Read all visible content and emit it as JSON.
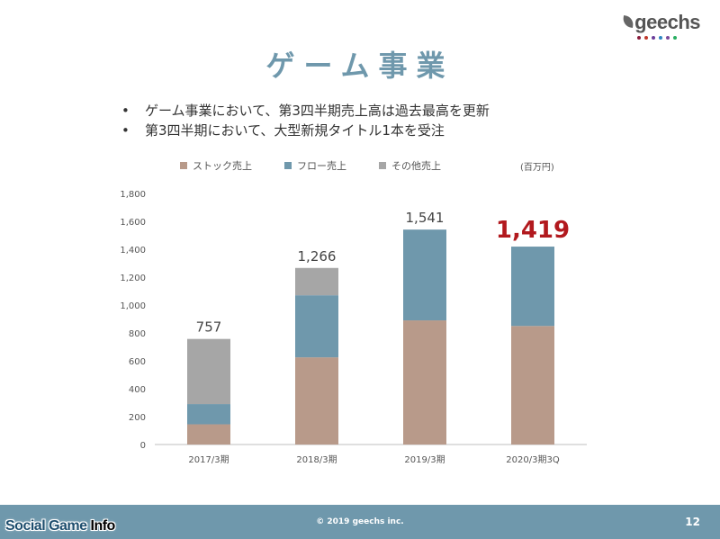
{
  "brand": {
    "name": "geechs",
    "dot_colors": [
      "#8b1c3c",
      "#c0392b",
      "#6a3d9a",
      "#2e86c1",
      "#7b4a9a",
      "#27ae60"
    ]
  },
  "slide": {
    "title": "ゲーム事業",
    "bullets": [
      "ゲーム事業において、第3四半期売上高は過去最高を更新",
      "第3四半期において、大型新規タイトル1本を受注"
    ],
    "page_number": "12",
    "copyright": "© 2019 geechs inc."
  },
  "watermark": {
    "part1": "Social Game ",
    "part2": "Info"
  },
  "colors": {
    "stock": "#b89a8a",
    "flow": "#6f98ac",
    "other": "#a6a6a6",
    "highlight": "#b2191e",
    "title": "#6f98ac"
  },
  "chart_data": {
    "type": "bar",
    "stacked": true,
    "unit": "(百万円)",
    "categories": [
      "2017/3期",
      "2018/3期",
      "2019/3期",
      "2020/3期3Q"
    ],
    "series": [
      {
        "name": "ストック売上",
        "values": [
          145,
          625,
          890,
          850
        ]
      },
      {
        "name": "フロー売上",
        "values": [
          145,
          445,
          651,
          569
        ]
      },
      {
        "name": "その他売上",
        "values": [
          467,
          196,
          0,
          0
        ]
      }
    ],
    "totals": [
      "757",
      "1,266",
      "1,541",
      "1,419"
    ],
    "highlight_index": 3,
    "ylim": [
      0,
      1800
    ],
    "yticks": [
      0,
      200,
      400,
      600,
      800,
      1000,
      1200,
      1400,
      1600,
      1800
    ],
    "ytick_labels": [
      "0",
      "200",
      "400",
      "600",
      "800",
      "1,000",
      "1,200",
      "1,400",
      "1,600",
      "1,800"
    ],
    "grid": false,
    "legend_position": "top"
  }
}
